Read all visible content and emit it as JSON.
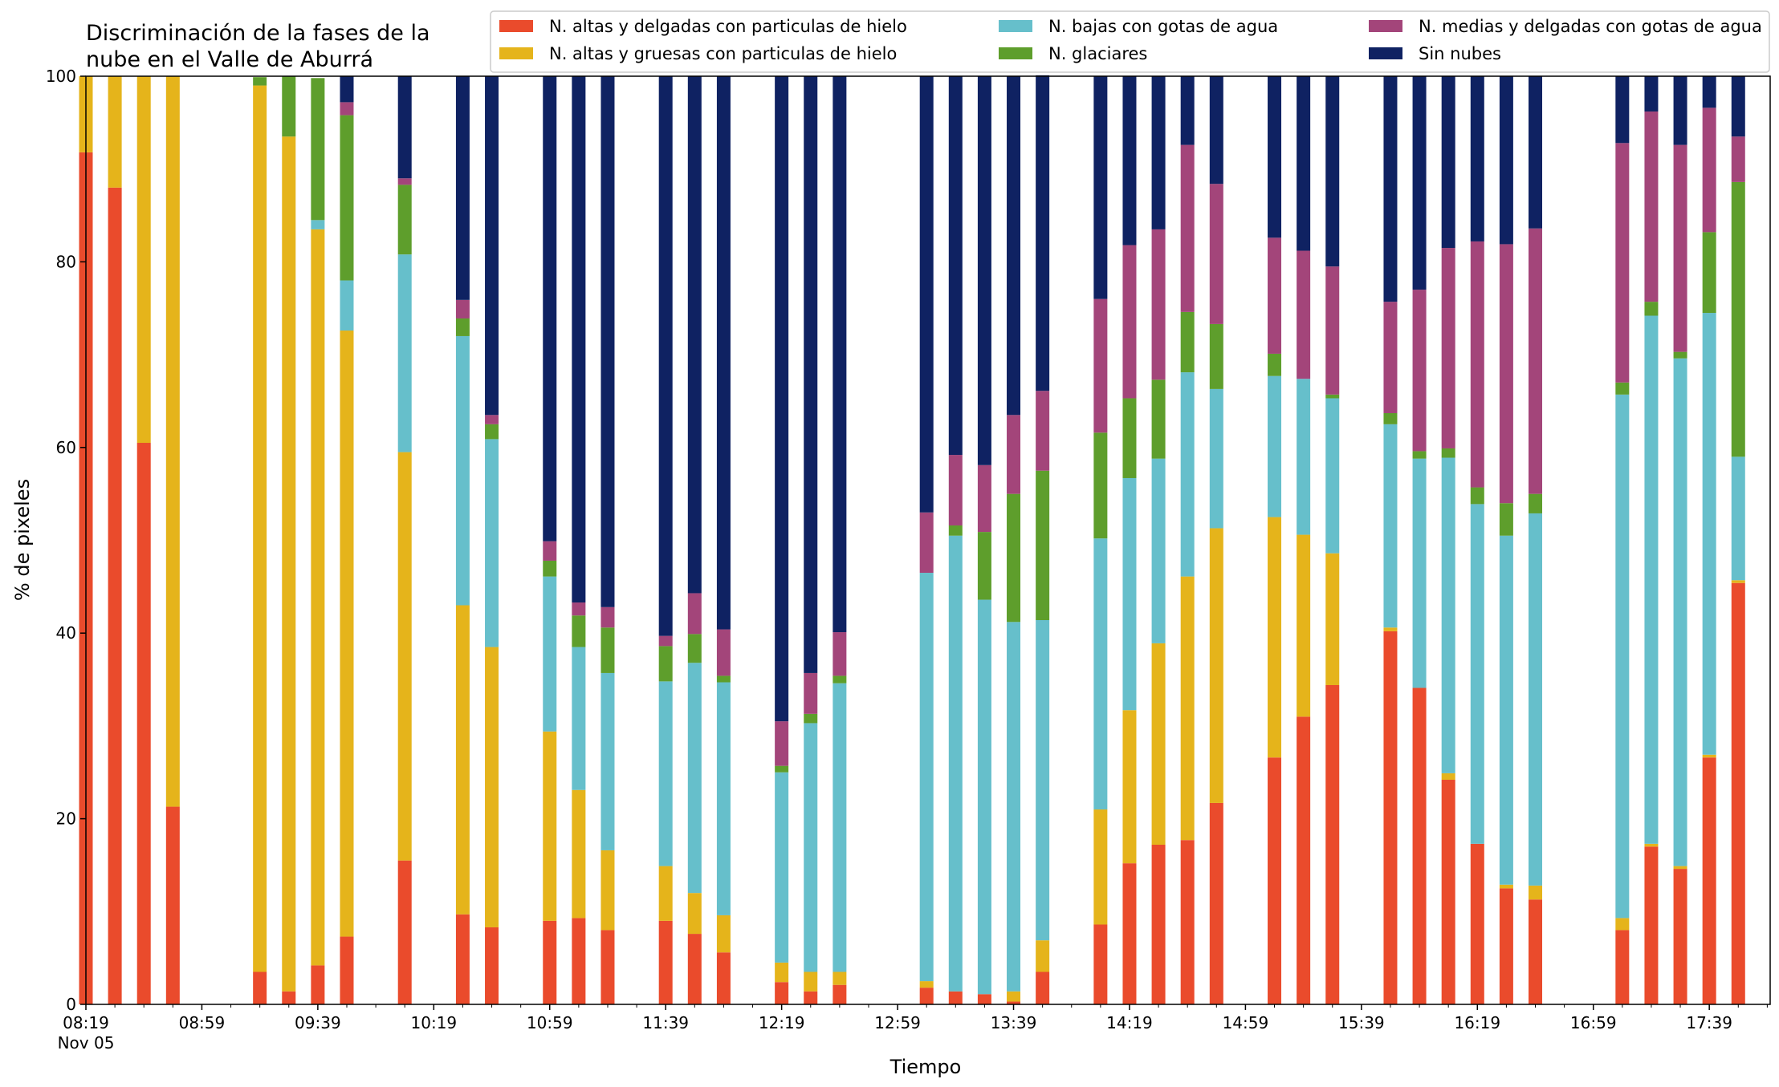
{
  "chart_data": {
    "type": "bar",
    "stacked": true,
    "title": "Discriminación de la fases de la nube en el Valle de Aburrá",
    "title_lines": [
      "Discriminación de la fases de la",
      "nube en el Valle de Aburrá"
    ],
    "xlabel": "Tiempo",
    "ylabel": "% de pixeles",
    "ylim": [
      0,
      100
    ],
    "yticks": [
      "0",
      "20",
      "40",
      "60",
      "80",
      "100"
    ],
    "xlim": [
      "08:19",
      "18:00"
    ],
    "xtick_labels": [
      "08:19",
      "08:59",
      "09:39",
      "10:19",
      "10:59",
      "11:39",
      "12:19",
      "12:59",
      "13:39",
      "14:19",
      "14:59",
      "15:39",
      "16:19",
      "16:59",
      "17:39"
    ],
    "xtick_sublabel": "Nov 05",
    "grid": false,
    "legend_position": "top-right",
    "categories": [
      "08:19",
      "08:29",
      "08:39",
      "08:49",
      "09:19",
      "09:29",
      "09:39",
      "09:49",
      "10:09",
      "10:29",
      "10:39",
      "10:59",
      "11:09",
      "11:19",
      "11:39",
      "11:49",
      "11:59",
      "12:19",
      "12:29",
      "12:39",
      "13:09",
      "13:19",
      "13:29",
      "13:39",
      "13:49",
      "14:09",
      "14:19",
      "14:29",
      "14:39",
      "14:49",
      "15:09",
      "15:19",
      "15:29",
      "15:49",
      "15:59",
      "16:09",
      "16:19",
      "16:29",
      "16:39",
      "17:09",
      "17:19",
      "17:29",
      "17:39",
      "17:49"
    ],
    "series": [
      {
        "name": "N. altas y delgadas con particulas de hielo",
        "color": "#ea4b2c",
        "values": [
          91.8,
          88.0,
          60.5,
          21.3,
          3.5,
          1.4,
          4.2,
          7.3,
          15.5,
          9.7,
          8.3,
          9.0,
          9.3,
          8.0,
          9.0,
          7.6,
          5.6,
          2.4,
          1.4,
          2.1,
          1.8,
          1.4,
          1.1,
          0.3,
          3.5,
          8.6,
          15.2,
          17.2,
          17.7,
          21.7,
          26.6,
          31.0,
          34.4,
          40.2,
          34.1,
          24.2,
          17.3,
          12.5,
          11.3,
          8.0,
          17.0,
          14.6,
          26.6,
          45.4
        ]
      },
      {
        "name": "N. altas y gruesas con particulas de hielo",
        "color": "#e5b41b",
        "values": [
          8.2,
          12.0,
          39.5,
          78.7,
          95.5,
          92.1,
          79.3,
          65.3,
          44.0,
          33.3,
          30.2,
          20.4,
          13.8,
          8.6,
          5.9,
          4.4,
          4.0,
          2.1,
          2.1,
          1.4,
          0.7,
          0,
          0,
          1.1,
          3.4,
          12.4,
          16.5,
          21.7,
          28.4,
          29.6,
          25.9,
          19.6,
          14.2,
          0.4,
          0,
          0.7,
          0,
          0.4,
          1.5,
          1.3,
          0.3,
          0.3,
          0.3,
          0.3
        ]
      },
      {
        "name": "N. bajas con gotas de agua",
        "color": "#66bfcb",
        "values": [
          0,
          0,
          0,
          0,
          0,
          0,
          1.0,
          5.4,
          21.3,
          29.0,
          22.4,
          16.7,
          15.4,
          19.1,
          19.9,
          24.8,
          25.1,
          20.5,
          26.8,
          31.1,
          44.0,
          49.1,
          42.5,
          39.8,
          34.5,
          29.2,
          25.0,
          19.9,
          22.0,
          15.0,
          15.2,
          16.8,
          16.7,
          21.9,
          24.7,
          34.0,
          36.6,
          37.6,
          40.1,
          56.4,
          56.9,
          54.7,
          47.6,
          13.3
        ]
      },
      {
        "name": "N. glaciares",
        "color": "#5e9e2c",
        "values": [
          0,
          0,
          0,
          0,
          0.9,
          6.5,
          15.3,
          17.8,
          7.5,
          1.9,
          1.6,
          1.7,
          3.4,
          4.9,
          3.8,
          3.1,
          0.7,
          0.7,
          1.0,
          0.8,
          0,
          1.1,
          7.3,
          13.8,
          16.1,
          11.4,
          8.6,
          8.5,
          6.5,
          7.0,
          2.4,
          0,
          0.4,
          1.2,
          0.8,
          1.0,
          1.8,
          3.5,
          2.1,
          1.3,
          1.5,
          0.7,
          8.7,
          29.6
        ]
      },
      {
        "name": "N. medias y delgadas con gotas de agua",
        "color": "#a3457a",
        "values": [
          0,
          0,
          0,
          0,
          0,
          0,
          0,
          1.4,
          0.7,
          2.0,
          1.0,
          2.1,
          1.4,
          2.2,
          1.1,
          4.4,
          5.0,
          4.8,
          4.4,
          4.7,
          6.5,
          7.6,
          7.2,
          8.5,
          8.6,
          14.4,
          16.5,
          16.2,
          18.0,
          15.1,
          12.5,
          13.8,
          13.8,
          12.0,
          17.4,
          21.6,
          26.5,
          27.9,
          28.6,
          25.8,
          20.5,
          22.3,
          13.4,
          4.9
        ]
      },
      {
        "name": "Sin nubes",
        "color": "#0f2262",
        "values": [
          0,
          0,
          0,
          0,
          0,
          0,
          0,
          2.8,
          11.0,
          24.1,
          36.5,
          50.1,
          56.7,
          57.2,
          60.3,
          55.7,
          59.6,
          69.5,
          64.3,
          59.9,
          47.0,
          40.8,
          41.9,
          36.5,
          34.0,
          24.0,
          18.2,
          16.5,
          7.4,
          11.6,
          17.4,
          18.8,
          20.5,
          24.3,
          23.0,
          18.5,
          17.8,
          18.1,
          16.4,
          7.2,
          3.8,
          7.4,
          3.4,
          6.5
        ]
      }
    ]
  }
}
